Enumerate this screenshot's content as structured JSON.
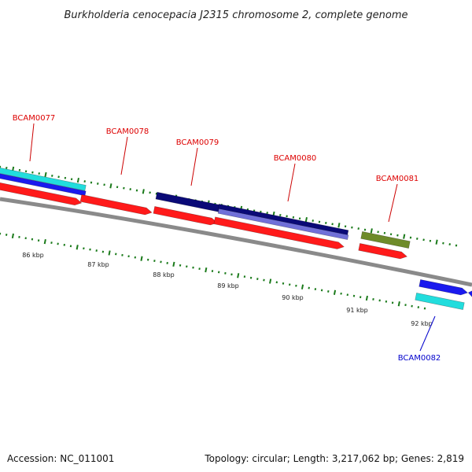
{
  "title": "Burkholderia cenocepacia J2315 chromosome 2, complete genome",
  "footer": {
    "accession": "Accession: NC_011001",
    "topology": "Topology: circular; Length: 3,217,062 bp; Genes: 2,819"
  },
  "ticks": [
    "86 kbp",
    "87 kbp",
    "88 kbp",
    "89 kbp",
    "90 kbp",
    "91 kbp",
    "92 kbp"
  ],
  "genes": [
    {
      "label": "BCAM0077",
      "strand": "forward",
      "color": "#dd0000"
    },
    {
      "label": "BCAM0078",
      "strand": "forward",
      "color": "#dd0000"
    },
    {
      "label": "BCAM0079",
      "strand": "forward",
      "color": "#dd0000"
    },
    {
      "label": "BCAM0080",
      "strand": "forward",
      "color": "#dd0000"
    },
    {
      "label": "BCAM0081",
      "strand": "forward",
      "color": "#dd0000"
    },
    {
      "label": "BCAM0082",
      "strand": "reverse",
      "color": "#0000cc"
    }
  ],
  "colors": {
    "backbone": "#8a8a8a",
    "cds": "#ff1a1a",
    "tick": "#1a7a1a",
    "cyan": "#22dddd",
    "blue": "#1a1aee",
    "navy": "#0a0a77",
    "lavender": "#7070d8",
    "olive": "#6e8b2a"
  }
}
